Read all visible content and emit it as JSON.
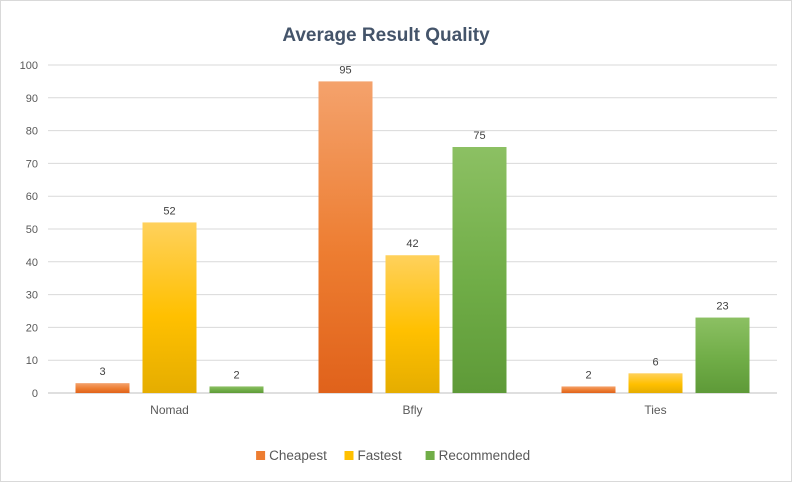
{
  "chart_data": {
    "type": "bar",
    "title": "Average Result Quality",
    "categories": [
      "Nomad",
      "Bfly",
      "Ties"
    ],
    "series": [
      {
        "name": "Cheapest",
        "values": [
          3,
          95,
          2
        ],
        "color": "#ed7d31",
        "color_light": "#f4a26c",
        "color_dark": "#e0621b"
      },
      {
        "name": "Fastest",
        "values": [
          52,
          42,
          6
        ],
        "color": "#ffc000",
        "color_light": "#ffd15c",
        "color_dark": "#e5ad00"
      },
      {
        "name": "Recommended",
        "values": [
          2,
          75,
          23
        ],
        "color": "#70ad47",
        "color_light": "#8cc063",
        "color_dark": "#5e9a38"
      }
    ],
    "ylim": [
      0,
      100
    ],
    "yticks": [
      0,
      10,
      20,
      30,
      40,
      50,
      60,
      70,
      80,
      90,
      100
    ],
    "grid": true,
    "legend": "bottom"
  }
}
